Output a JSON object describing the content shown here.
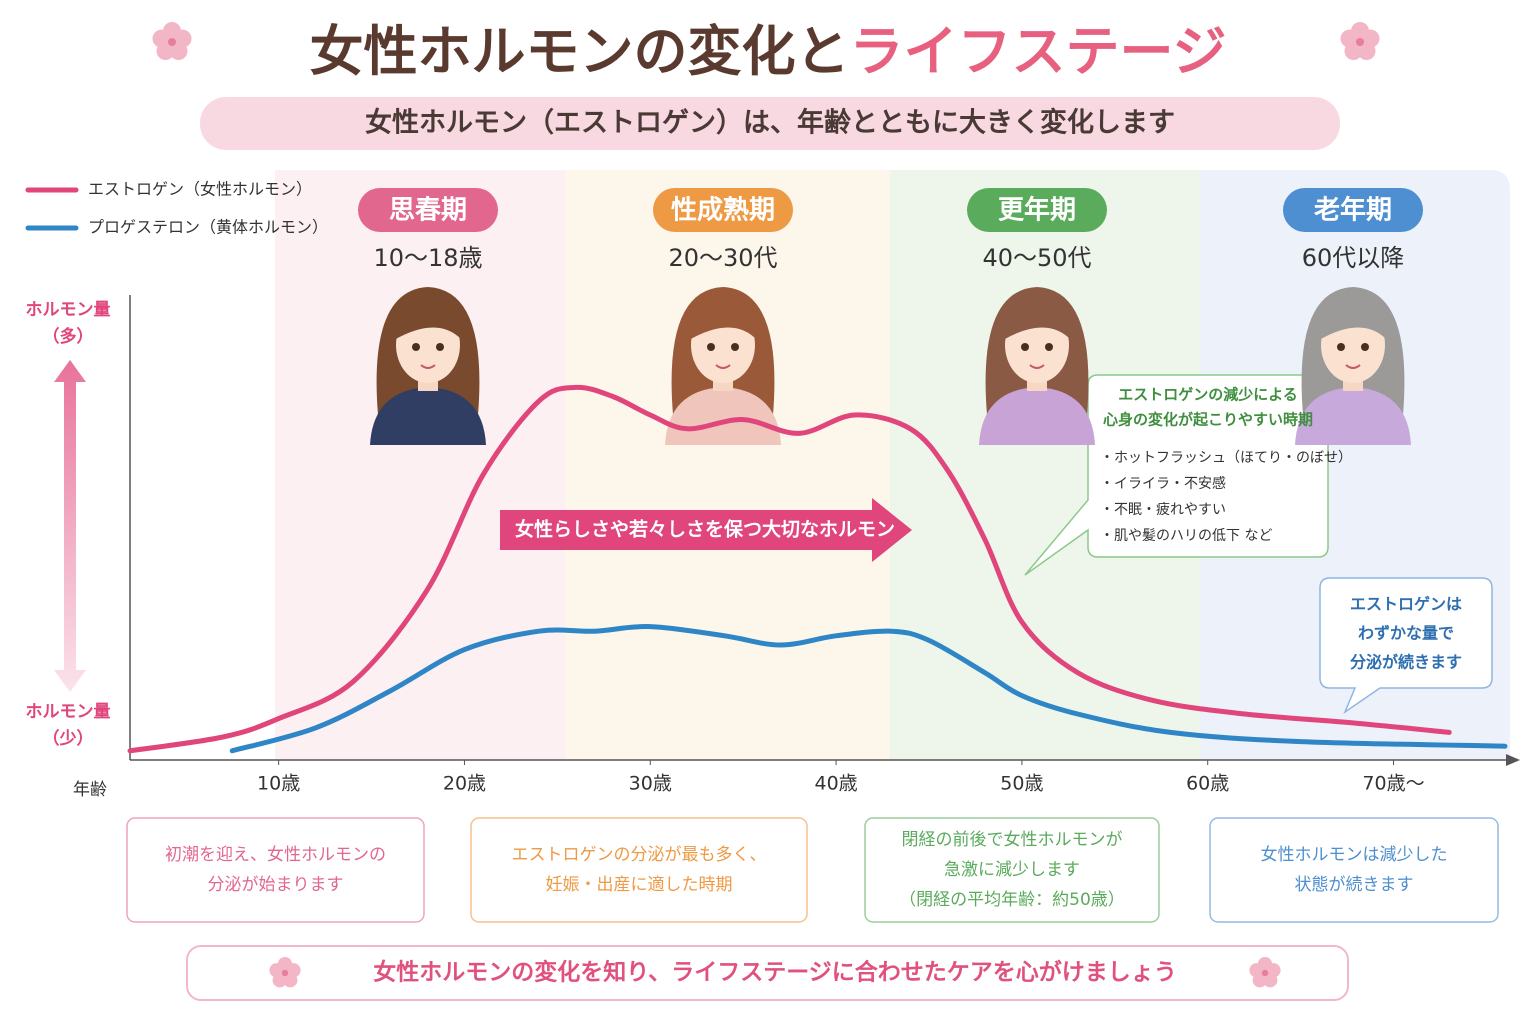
{
  "header": {
    "title_main": "女性ホルモンの変化と",
    "title_accent": "ライフステージ",
    "subtitle": "女性ホルモン（エストロゲン）は、年齢とともに大きく変化します"
  },
  "stages": [
    {
      "name": "思春期",
      "ages": "10～18歳",
      "color": "#e2678f",
      "note": [
        "初潮を迎え、女性ホルモンの",
        "分泌が始まります"
      ]
    },
    {
      "name": "性成熟期",
      "ages": "20～30代",
      "color": "#ee9a45",
      "note": [
        "エストロゲンの分泌が最も多く、",
        "妊娠・出産に適した時期"
      ]
    },
    {
      "name": "更年期",
      "ages": "40～50代",
      "color": "#5aab5c",
      "note": [
        "閉経の前後で女性ホルモンが",
        "急激に減少します",
        "（閉経の平均年齢：約50歳）"
      ]
    },
    {
      "name": "老年期",
      "ages": "60代以降",
      "color": "#4d8fd0",
      "note": [
        "女性ホルモンは減少した",
        "状態が続きます"
      ]
    }
  ],
  "chart_data": {
    "type": "line",
    "x_label": "年齢",
    "y_label_high": [
      "ホルモン量",
      "（多）"
    ],
    "y_label_low": [
      "ホルモン量",
      "（少）"
    ],
    "xlim": [
      2,
      76
    ],
    "ylim": [
      0,
      100
    ],
    "xticks": [
      {
        "value": 10,
        "label": "10歳"
      },
      {
        "value": 20,
        "label": "20歳"
      },
      {
        "value": 30,
        "label": "30歳"
      },
      {
        "value": 40,
        "label": "40歳"
      },
      {
        "value": 50,
        "label": "50歳"
      },
      {
        "value": 60,
        "label": "60歳"
      },
      {
        "value": 70,
        "label": "70歳～"
      }
    ],
    "legend": "top-left",
    "series": [
      {
        "name": "エストロゲン（女性ホルモン）",
        "color": "#e0457b",
        "x": [
          2,
          7,
          10,
          14,
          18,
          21,
          24,
          26,
          28,
          30,
          32,
          35,
          38,
          41,
          44,
          46,
          48,
          50,
          53,
          57,
          62,
          68,
          73
        ],
        "values": [
          2,
          5,
          9,
          17,
          37,
          62,
          78,
          81,
          79,
          75,
          72,
          74,
          71,
          75,
          72,
          63,
          48,
          30,
          19,
          13,
          10,
          8,
          6
        ]
      },
      {
        "name": "プロゲステロン（黄体ホルモン）",
        "color": "#2f86c6",
        "x": [
          7.5,
          12,
          16,
          20,
          24,
          27,
          30,
          34,
          37,
          40,
          43,
          45,
          48,
          50,
          53,
          58,
          65,
          76
        ],
        "values": [
          2,
          7,
          15,
          24,
          28,
          28,
          29,
          27,
          25,
          27,
          28,
          26,
          19,
          14,
          10,
          6,
          4,
          3
        ]
      }
    ],
    "annotations": {
      "arrow": "女性らしさや若々しさを保つ大切なホルモン",
      "callout_title": [
        "エストロゲンの減少による",
        "心身の変化が起こりやすい時期"
      ],
      "callout_items": [
        "・ホットフラッシュ（ほてり・のぼせ）",
        "・イライラ・不安感",
        "・不眠・疲れやすい",
        "・肌や髪のハリの低下 など"
      ],
      "late_note": [
        "エストロゲンは",
        "わずかな量で",
        "分泌が続きます"
      ]
    }
  },
  "footer": "女性ホルモンの変化を知り、ライフステージに合わせたケアを心がけましょう"
}
